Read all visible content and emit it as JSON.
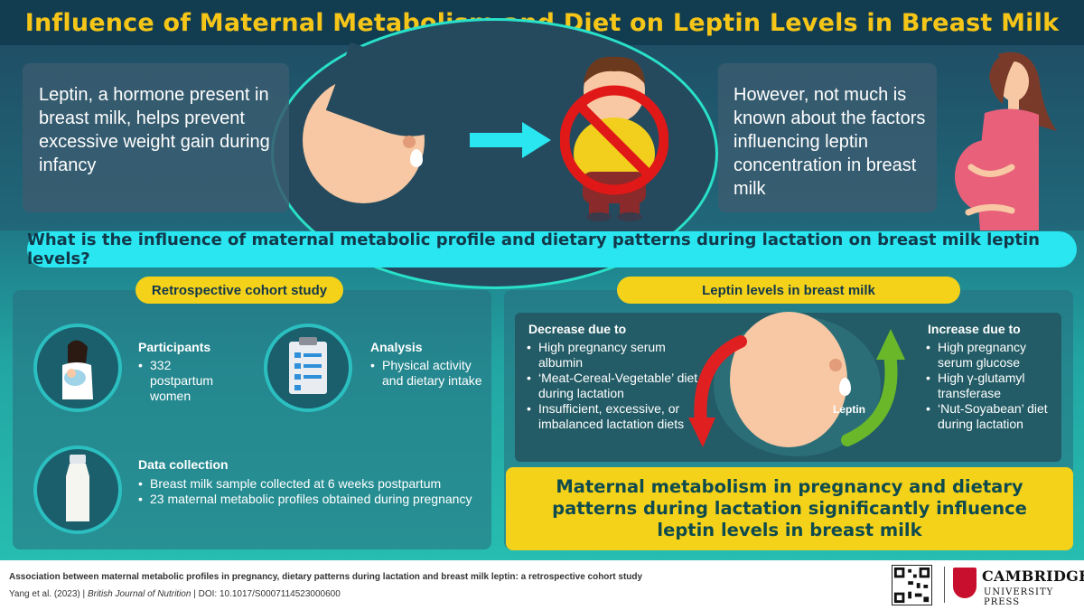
{
  "title": "Influence of Maternal Metabolism and Diet on Leptin Levels in Breast Milk",
  "top": {
    "left_text": "Leptin, a hormone present in breast milk, helps prevent excessive weight gain during infancy",
    "right_text": "However, not much is known about the factors influencing leptin concentration in breast milk"
  },
  "question": "What is the influence of maternal metabolic profile and dietary patterns during lactation on breast milk leptin levels?",
  "study": {
    "pill": "Retrospective cohort study",
    "participants": {
      "title": "Participants",
      "items": [
        "332 postpartum women"
      ]
    },
    "analysis": {
      "title": "Analysis",
      "items": [
        "Physical activity and dietary intake"
      ]
    },
    "data_collection": {
      "title": "Data collection",
      "items": [
        "Breast milk sample collected at 6 weeks postpartum",
        "23 maternal metabolic profiles obtained during pregnancy"
      ]
    }
  },
  "leptin": {
    "pill": "Leptin levels in breast milk",
    "decrease": {
      "title": "Decrease due to",
      "items": [
        "High pregnancy serum albumin",
        "‘Meat-Cereal-Vegetable’ diet during lactation",
        "Insufficient, excessive, or imbalanced lactation diets"
      ]
    },
    "center_label": "Leptin",
    "increase": {
      "title": "Increase due to",
      "items": [
        "High pregnancy serum glucose",
        "High γ-glutamyl transferase",
        "‘Nut-Soyabean’ diet during lactation"
      ]
    }
  },
  "conclusion": "Maternal metabolism in pregnancy and dietary patterns during lactation significantly influence leptin levels in breast milk",
  "footer": {
    "citation_title": "Association between maternal metabolic profiles in pregnancy, dietary patterns during lactation and breast milk leptin: a retrospective cohort study",
    "authors": "Yang et al. (2023)",
    "journal": "British Journal of Nutrition",
    "doi": "DOI: 10.1017/S0007114523000600",
    "publisher_name": "CAMBRIDGE",
    "publisher_sub": "UNIVERSITY PRESS"
  },
  "colors": {
    "title_yellow": "#f5c518",
    "accent_cyan": "#29e6f0",
    "decrease_red": "#e02020",
    "increase_green": "#6ab82a"
  }
}
